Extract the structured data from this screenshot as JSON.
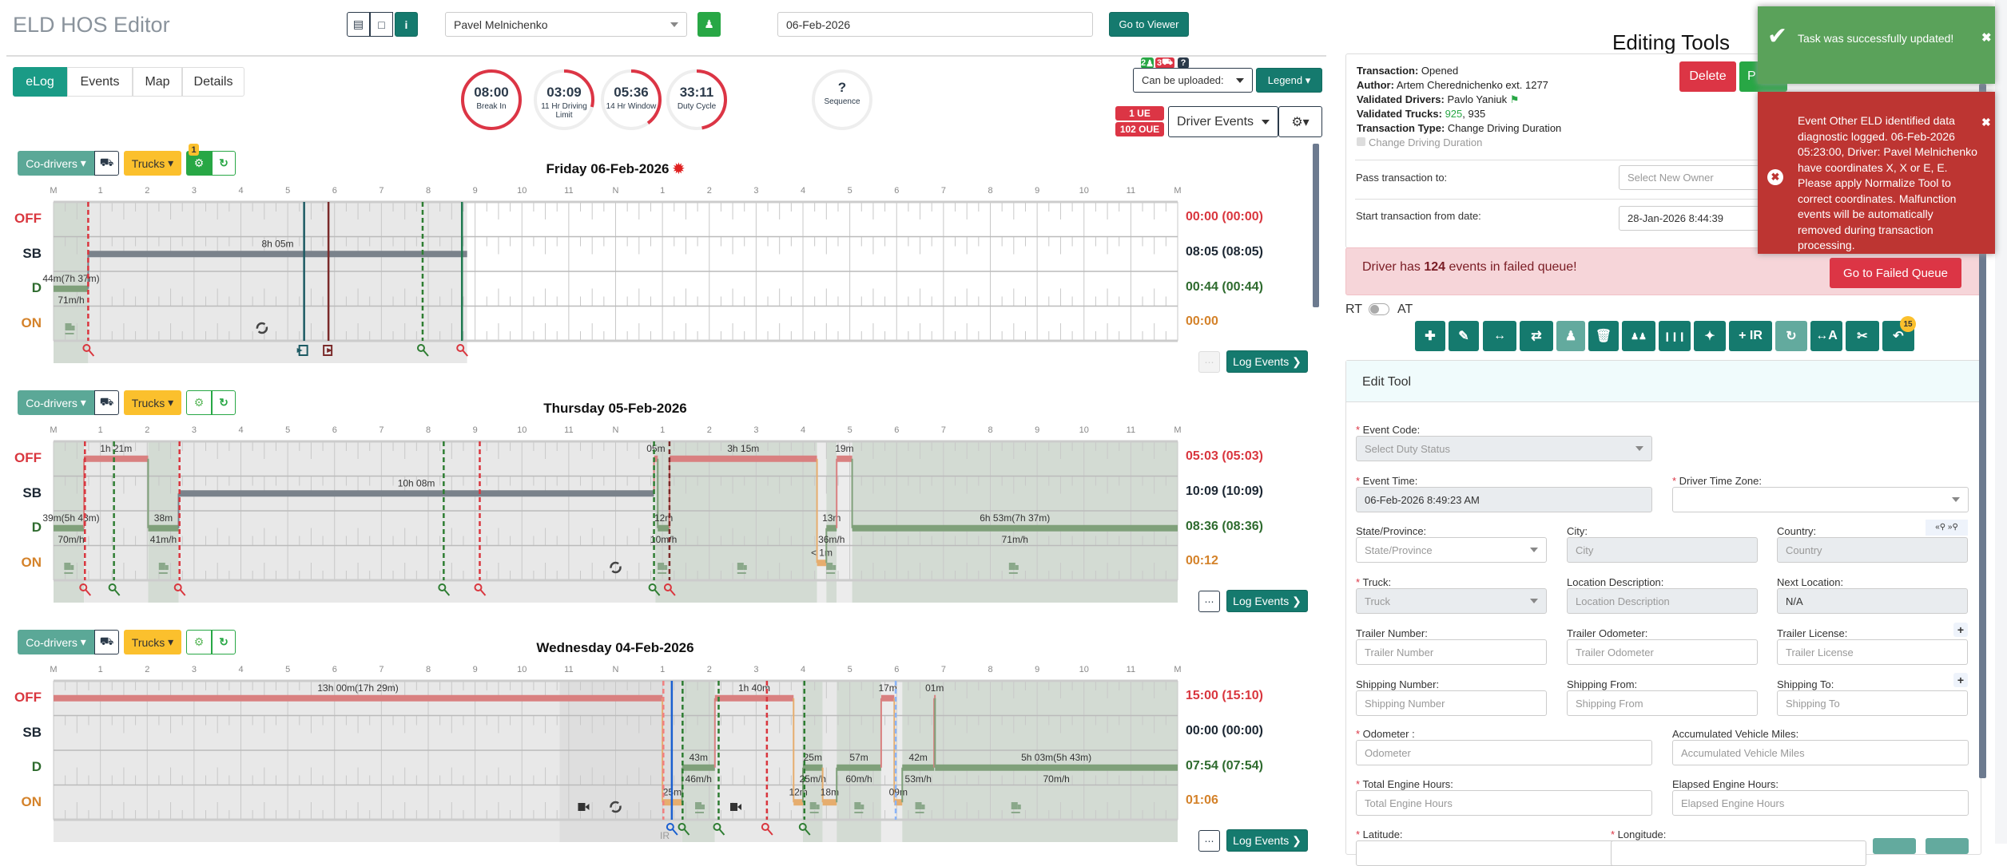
{
  "header": {
    "title": "ELD HOS Editor",
    "driver_select": "Pavel Melnichenko",
    "date_input": "06-Feb-2026",
    "go_viewer": "Go to Viewer"
  },
  "tabs": [
    "eLog",
    "Events",
    "Map",
    "Details"
  ],
  "gauges": [
    {
      "value": "08:00",
      "label": "Break In",
      "fill": 1.0
    },
    {
      "value": "03:09",
      "label": "11 Hr Driving Limit",
      "fill": 0.29
    },
    {
      "value": "05:36",
      "label": "14 Hr Window",
      "fill": 0.4
    },
    {
      "value": "33:11",
      "label": "Duty Cycle",
      "fill": 0.47
    },
    {
      "value": "?",
      "label": "Sequence",
      "fill": 0
    }
  ],
  "upload": {
    "badge_drivers": "2",
    "badge_trucks": "3",
    "badge_help": "?",
    "select": "Can be uploaded:",
    "legend": "Legend"
  },
  "events_bar": {
    "ue": "1 UE",
    "oue": "102 OUE",
    "select": "Driver Events"
  },
  "chart_common": {
    "hours": [
      "M",
      "1",
      "2",
      "3",
      "4",
      "5",
      "6",
      "7",
      "8",
      "9",
      "10",
      "11",
      "N",
      "1",
      "2",
      "3",
      "4",
      "5",
      "6",
      "7",
      "8",
      "9",
      "10",
      "11",
      "M"
    ],
    "rows": [
      "OFF",
      "SB",
      "D",
      "ON"
    ],
    "codrivers": "Co-drivers",
    "trucks": "Trucks",
    "log_events": "Log Events",
    "colors": {
      "OFF": "#d9363e",
      "SB": "#1c2733",
      "D": "#2e6b2e",
      "ON": "#d4822a"
    },
    "bar_colors": {
      "OFF": "#d98080",
      "SB": "#7a828b",
      "D": "#7fa07a",
      "ON": "#e6ad6e"
    }
  },
  "days": [
    {
      "title": "Friday 06-Feb-2026",
      "current": true,
      "eng_badge": "1",
      "eng_active": true,
      "comment_active": false,
      "totals": {
        "OFF": "00:00 (00:00)",
        "SB": "08:05 (08:05)",
        "D": "00:44 (00:44)",
        "ON": "00:00"
      },
      "shading": [
        {
          "from": 0,
          "to": 0.74,
          "type": "driving"
        },
        {
          "from": 0.74,
          "to": 8.83,
          "type": "elapsed"
        }
      ],
      "segments": [
        {
          "status": "D",
          "from": 0,
          "to": 0.74,
          "label": "44m(7h 37m)",
          "speed": "71m/h"
        },
        {
          "status": "SB",
          "from": 0.74,
          "to": 8.83,
          "label": "8h 05m"
        }
      ],
      "lines": [
        {
          "at": 0.74,
          "color": "#d9363e",
          "dashed": true
        },
        {
          "at": 5.35,
          "color": "#1d5a63",
          "dashed": false
        },
        {
          "at": 5.87,
          "color": "#7a2a2a",
          "dashed": false
        },
        {
          "at": 7.88,
          "color": "#2e7d32",
          "dashed": true
        },
        {
          "at": 8.72,
          "color": "#1f7a50",
          "dashed": false
        }
      ],
      "markers": [
        {
          "at": 0.74,
          "icon": "key",
          "color": "#d9363e"
        },
        {
          "at": 5.35,
          "icon": "login",
          "color": "#1d5a63"
        },
        {
          "at": 5.87,
          "icon": "logout",
          "color": "#7a2a2a"
        },
        {
          "at": 7.88,
          "icon": "key",
          "color": "#2e7d32"
        },
        {
          "at": 8.72,
          "icon": "key",
          "color": "#d9363e"
        }
      ],
      "row_icons": [
        {
          "at": 0.35,
          "icon": "truck"
        },
        {
          "at": 4.45,
          "icon": "sync"
        }
      ]
    },
    {
      "title": "Thursday 05-Feb-2026",
      "current": false,
      "eng_badge": "",
      "eng_active": false,
      "comment_active": true,
      "totals": {
        "OFF": "05:03 (05:03)",
        "SB": "10:09 (10:09)",
        "D": "08:36 (08:36)",
        "ON": "00:12"
      },
      "shading": [
        {
          "from": 0,
          "to": 0.65,
          "type": "driving"
        },
        {
          "from": 0.65,
          "to": 2.02,
          "type": "elapsed"
        },
        {
          "from": 2.02,
          "to": 2.67,
          "type": "driving"
        },
        {
          "from": 2.67,
          "to": 12.85,
          "type": "elapsed"
        },
        {
          "from": 12.85,
          "to": 16.3,
          "type": "driving"
        },
        {
          "from": 16.3,
          "to": 16.5,
          "type": "light"
        },
        {
          "from": 16.5,
          "to": 16.72,
          "type": "driving"
        },
        {
          "from": 16.72,
          "to": 17.05,
          "type": "light"
        },
        {
          "from": 17.05,
          "to": 24,
          "type": "driving"
        }
      ],
      "segments": [
        {
          "status": "D",
          "from": 0,
          "to": 0.65,
          "label": "39m(5h 43m)",
          "speed": "70m/h"
        },
        {
          "status": "OFF",
          "from": 0.65,
          "to": 2.02,
          "label": "1h 21m"
        },
        {
          "status": "D",
          "from": 2.02,
          "to": 2.67,
          "label": "38m",
          "speed": "41m/h"
        },
        {
          "status": "SB",
          "from": 2.67,
          "to": 12.82,
          "label": "10h 08m"
        },
        {
          "status": "OFF",
          "from": 12.82,
          "to": 12.9,
          "label": "05m"
        },
        {
          "status": "D",
          "from": 12.9,
          "to": 13.15,
          "label": "12m",
          "speed": "10m/h"
        },
        {
          "status": "OFF",
          "from": 13.15,
          "to": 16.3,
          "label": "3h 15m"
        },
        {
          "status": "ON",
          "from": 16.3,
          "to": 16.5,
          "label": "< 1m"
        },
        {
          "status": "D",
          "from": 16.5,
          "to": 16.72,
          "label": "13m",
          "speed": "36m/h"
        },
        {
          "status": "OFF",
          "from": 16.72,
          "to": 17.05,
          "label": "19m"
        },
        {
          "status": "D",
          "from": 17.05,
          "to": 24,
          "label": "6h 53m(7h 37m)",
          "speed": "71m/h"
        }
      ],
      "lines": [
        {
          "at": 0.67,
          "color": "#d9363e",
          "dashed": true
        },
        {
          "at": 1.29,
          "color": "#2e7d32",
          "dashed": true
        },
        {
          "at": 2.69,
          "color": "#d9363e",
          "dashed": true
        },
        {
          "at": 8.33,
          "color": "#2e7d32",
          "dashed": true
        },
        {
          "at": 9.1,
          "color": "#d9363e",
          "dashed": true
        },
        {
          "at": 12.82,
          "color": "#2e7d32",
          "dashed": true
        },
        {
          "at": 13.15,
          "color": "#7a2a2a",
          "dashed": true
        }
      ],
      "markers": [
        {
          "at": 0.67,
          "icon": "key",
          "color": "#d9363e"
        },
        {
          "at": 1.29,
          "icon": "key",
          "color": "#2e7d32"
        },
        {
          "at": 2.69,
          "icon": "key",
          "color": "#d9363e"
        },
        {
          "at": 8.33,
          "icon": "key",
          "color": "#2e7d32"
        },
        {
          "at": 9.1,
          "icon": "key",
          "color": "#d9363e"
        },
        {
          "at": 12.82,
          "icon": "key",
          "color": "#2e7d32"
        },
        {
          "at": 13.15,
          "icon": "key",
          "color": "#d9363e"
        }
      ],
      "row_icons": [
        {
          "at": 0.33,
          "icon": "truck"
        },
        {
          "at": 2.35,
          "icon": "truck"
        },
        {
          "at": 12.0,
          "icon": "sync"
        },
        {
          "at": 13.0,
          "icon": "truck"
        },
        {
          "at": 14.7,
          "icon": "truck"
        },
        {
          "at": 16.6,
          "icon": "truck"
        },
        {
          "at": 20.5,
          "icon": "truck"
        }
      ]
    },
    {
      "title": "Wednesday 04-Feb-2026",
      "current": false,
      "eng_badge": "",
      "eng_active": false,
      "comment_active": true,
      "totals": {
        "OFF": "15:00 (15:10)",
        "SB": "00:00 (00:00)",
        "D": "07:54 (07:54)",
        "ON": "01:06"
      },
      "shading": [
        {
          "from": 0,
          "to": 10.8,
          "type": "elapsed"
        },
        {
          "from": 10.8,
          "to": 13.42,
          "type": "dark"
        },
        {
          "from": 13.42,
          "to": 14.12,
          "type": "driving"
        },
        {
          "from": 14.12,
          "to": 16.0,
          "type": "elapsed"
        },
        {
          "from": 16.0,
          "to": 16.42,
          "type": "driving"
        },
        {
          "from": 16.42,
          "to": 16.72,
          "type": "elapsed"
        },
        {
          "from": 16.72,
          "to": 17.67,
          "type": "driving"
        },
        {
          "from": 17.67,
          "to": 18.12,
          "type": "light"
        },
        {
          "from": 18.12,
          "to": 24,
          "type": "driving"
        }
      ],
      "segments": [
        {
          "status": "OFF",
          "from": 0,
          "to": 13.0,
          "label": "13h 00m(17h 29m)"
        },
        {
          "status": "ON",
          "from": 13.0,
          "to": 13.42,
          "label": "25m"
        },
        {
          "status": "D",
          "from": 13.42,
          "to": 14.12,
          "label": "43m",
          "speed": "46m/h"
        },
        {
          "status": "OFF",
          "from": 14.12,
          "to": 15.8,
          "label": "1h 40m"
        },
        {
          "status": "ON",
          "from": 15.8,
          "to": 16.0,
          "label": "12m"
        },
        {
          "status": "D",
          "from": 16.0,
          "to": 16.42,
          "label": "25m",
          "speed": "25m/h"
        },
        {
          "status": "ON",
          "from": 16.42,
          "to": 16.72,
          "label": "18m"
        },
        {
          "status": "D",
          "from": 16.72,
          "to": 17.67,
          "label": "57m",
          "speed": "60m/h"
        },
        {
          "status": "OFF",
          "from": 17.67,
          "to": 17.95,
          "label": "17m"
        },
        {
          "status": "ON",
          "from": 17.95,
          "to": 18.12,
          "label": "09m"
        },
        {
          "status": "D",
          "from": 18.12,
          "to": 18.8,
          "label": "42m",
          "speed": "53m/h"
        },
        {
          "status": "OFF",
          "from": 18.8,
          "to": 18.82,
          "label": "01m"
        },
        {
          "status": "D",
          "from": 18.82,
          "to": 24,
          "label": "5h 03m(5h 43m)",
          "speed": "70m/h"
        }
      ],
      "lines": [
        {
          "at": 13.02,
          "color": "#f08080",
          "dashed": true
        },
        {
          "at": 13.2,
          "color": "#1a5fd0",
          "dashed": false
        },
        {
          "at": 13.43,
          "color": "#2e7d32",
          "dashed": true
        },
        {
          "at": 14.2,
          "color": "#2e7d32",
          "dashed": true
        },
        {
          "at": 15.23,
          "color": "#d9363e",
          "dashed": true
        },
        {
          "at": 16.03,
          "color": "#2e7d32",
          "dashed": true
        },
        {
          "at": 17.98,
          "color": "#8ab4f8",
          "dashed": true
        }
      ],
      "markers": [
        {
          "at": 13.2,
          "icon": "key",
          "color": "#1a5fd0"
        },
        {
          "at": 13.45,
          "icon": "key",
          "color": "#2e7d32"
        },
        {
          "at": 14.2,
          "icon": "key",
          "color": "#2e7d32"
        },
        {
          "at": 15.23,
          "icon": "key",
          "color": "#d9363e"
        },
        {
          "at": 16.03,
          "icon": "key",
          "color": "#2e7d32"
        }
      ],
      "strip_text": {
        "at": 13.05,
        "text": "IR"
      },
      "row_icons": [
        {
          "at": 11.3,
          "icon": "camera"
        },
        {
          "at": 12.0,
          "icon": "sync"
        },
        {
          "at": 13.8,
          "icon": "truck"
        },
        {
          "at": 14.55,
          "icon": "camera"
        },
        {
          "at": 16.25,
          "icon": "truck"
        },
        {
          "at": 17.2,
          "icon": "truck"
        },
        {
          "at": 18.5,
          "icon": "truck"
        },
        {
          "at": 20.55,
          "icon": "truck"
        }
      ]
    }
  ],
  "editing": {
    "title": "Editing Tools",
    "transaction_label": "Transaction:",
    "transaction": "Opened",
    "author_label": "Author:",
    "author": "Artem Cherednichenko ext. 1277",
    "drivers_label": "Validated Drivers:",
    "drivers": "Pavlo Yaniuk",
    "trucks_label": "Validated Trucks:",
    "truck_ok": "925",
    "truck_sep": ",",
    "truck_other": "935",
    "type_label": "Transaction Type:",
    "type": "Change Driving Duration",
    "checkbox": "Change Driving Duration",
    "delete": "Delete",
    "process": "P",
    "pass_label": "Pass transaction to:",
    "pass_placeholder": "Select New Owner",
    "start_label": "Start transaction from date:",
    "start_value": "28-Jan-2026 8:44:39",
    "failed_pre": "Driver has ",
    "failed_count": "124",
    "failed_post": " events in failed queue!",
    "failed_button": "Go to Failed Queue",
    "rt": "RT",
    "at": "AT",
    "toolbar": [
      "plus-icon",
      "pencil-icon",
      "arrows-h-icon",
      "exchange-icon",
      "user-icon",
      "trash-icon",
      "users-icon",
      "columns-icon",
      "magic-icon",
      "+ IR",
      "refresh-icon",
      "text-width-icon",
      "scissors-icon",
      "undo-icon"
    ],
    "undo_badge": "15"
  },
  "edit_tool": {
    "title": "Edit Tool",
    "event_code": {
      "label": "Event Code:",
      "placeholder": "Select Duty Status"
    },
    "event_time": {
      "label": "Event Time:",
      "value": "06-Feb-2026 8:49:23 AM"
    },
    "tz": {
      "label": "Driver Time Zone:",
      "value": ""
    },
    "state": {
      "label": "State/Province:",
      "placeholder": "State/Province"
    },
    "city": {
      "label": "City:",
      "placeholder": "City"
    },
    "country": {
      "label": "Country:",
      "placeholder": "Country"
    },
    "truck": {
      "label": "Truck:",
      "placeholder": "Truck"
    },
    "locdesc": {
      "label": "Location Description:",
      "placeholder": "Location Description"
    },
    "nextloc": {
      "label": "Next Location:",
      "value": "N/A"
    },
    "trailer_num": {
      "label": "Trailer Number:",
      "placeholder": "Trailer Number"
    },
    "trailer_odo": {
      "label": "Trailer Odometer:",
      "placeholder": "Trailer Odometer"
    },
    "trailer_lic": {
      "label": "Trailer License:",
      "placeholder": "Trailer License"
    },
    "ship_num": {
      "label": "Shipping Number:",
      "placeholder": "Shipping Number"
    },
    "ship_from": {
      "label": "Shipping From:",
      "placeholder": "Shipping From"
    },
    "ship_to": {
      "label": "Shipping To:",
      "placeholder": "Shipping To"
    },
    "odometer": {
      "label": "Odometer :",
      "placeholder": "Odometer"
    },
    "acc_miles": {
      "label": "Accumulated Vehicle Miles:",
      "placeholder": "Accumulated Vehicle Miles"
    },
    "eng_hours": {
      "label": "Total Engine Hours:",
      "placeholder": "Total Engine Hours"
    },
    "elapsed_hours": {
      "label": "Elapsed Engine Hours:",
      "placeholder": "Elapsed Engine Hours"
    },
    "latitude": {
      "label": "Latitude:"
    },
    "longitude": {
      "label": "Longitude:"
    }
  },
  "toasts": {
    "success": "Task was successfully updated!",
    "error": "Event Other ELD identified data diagnostic logged. 06-Feb-2026 05:23:00, Driver: Pavel Melnichenko have coordinates X, X or E, E. Please apply Normalize Tool to correct coordinates. Malfunction events will be automatically removed during transaction processing."
  }
}
